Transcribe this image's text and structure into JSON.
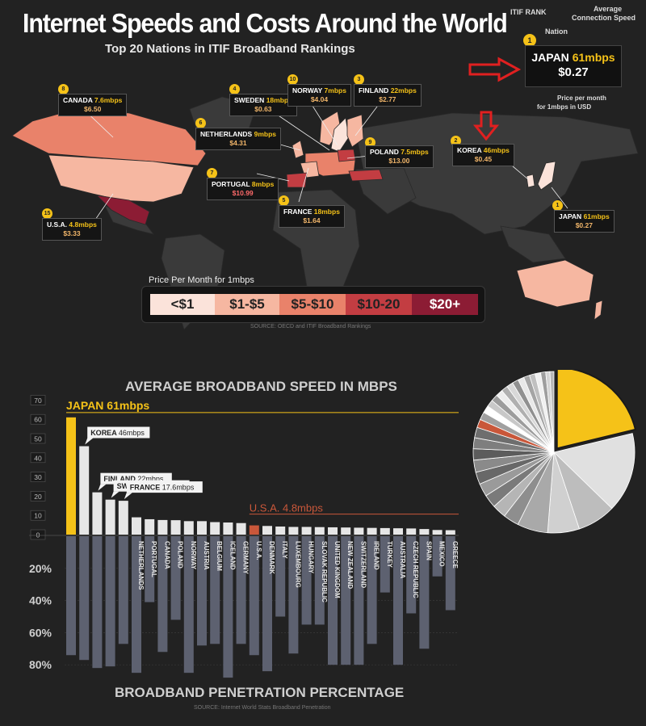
{
  "header": {
    "title": "Internet Speeds and Costs Around the World",
    "subtitle": "Top 20 Nations in ITIF Broadband Rankings"
  },
  "key": {
    "rank_label": "ITIF RANK",
    "nation_label": "Nation",
    "speed_label_1": "Average",
    "speed_label_2": "Connection Speed",
    "rank": "1",
    "nation": "JAPAN",
    "speed": "61mbps",
    "price": "$0.27",
    "price_label_1": "Price per month",
    "price_label_2": "for 1mbps in USD"
  },
  "map_callouts": [
    {
      "rank": "8",
      "nation": "CANADA",
      "speed": "7.6mbps",
      "price": "$6.50"
    },
    {
      "rank": "4",
      "nation": "SWEDEN",
      "speed": "18mbps",
      "price": "$0.63"
    },
    {
      "rank": "10",
      "nation": "NORWAY",
      "speed": "7mbps",
      "price": "$4.04"
    },
    {
      "rank": "3",
      "nation": "FINLAND",
      "speed": "22mbps",
      "price": "$2.77"
    },
    {
      "rank": "6",
      "nation": "NETHERLANDS",
      "speed": "9mbps",
      "price": "$4.31"
    },
    {
      "rank": "9",
      "nation": "POLAND",
      "speed": "7.5mbps",
      "price": "$13.00"
    },
    {
      "rank": "2",
      "nation": "KOREA",
      "speed": "46mbps",
      "price": "$0.45"
    },
    {
      "rank": "7",
      "nation": "PORTUGAL",
      "speed": "8mbps",
      "price": "$10.99"
    },
    {
      "rank": "5",
      "nation": "FRANCE",
      "speed": "18mbps",
      "price": "$1.64"
    },
    {
      "rank": "15",
      "nation": "U.S.A.",
      "speed": "4.8mbps",
      "price": "$3.33"
    },
    {
      "rank": "1",
      "nation": "JAPAN",
      "speed": "61mbps",
      "price": "$0.27"
    }
  ],
  "price_legend": {
    "title": "Price Per Month for 1mbps",
    "ranges": [
      "<$1",
      "$1-$5",
      "$5-$10",
      "$10-20",
      "$20+"
    ],
    "colors": [
      "#fbe3da",
      "#f6b7a1",
      "#e9826a",
      "#c33d42",
      "#8c1c34"
    ]
  },
  "map_source": "SOURCE: OECD and ITIF Broadband Rankings",
  "speed_section_title": "AVERAGE BROADBAND SPEED IN MBPS",
  "penetration_section_title": "BROADBAND PENETRATION PERCENTAGE",
  "penetration_source": "SOURCE: Internet World Stats Broadband Penetration",
  "colors": {
    "background": "#222222",
    "highlight": "#f5c218",
    "usa": "#c9573a",
    "bars": "#e6e6e6",
    "penetration_bars": "#5d6170"
  },
  "chart_data": [
    {
      "type": "bar",
      "title": "AVERAGE BROADBAND SPEED IN MBPS",
      "ylim": [
        0,
        70
      ],
      "yticks": [
        0,
        10,
        20,
        30,
        40,
        50,
        60,
        70
      ],
      "annotations": [
        {
          "label": "JAPAN 61mbps",
          "index": 0
        },
        {
          "label": "KOREA 46mbps",
          "index": 1
        },
        {
          "label": "FINLAND 22mbps",
          "index": 2
        },
        {
          "label": "SWEDEN 18.2mbps",
          "index": 3
        },
        {
          "label": "FRANCE 17.6mbps",
          "index": 4
        },
        {
          "label": "U.S.A. 4.8mbps",
          "index": 14
        }
      ],
      "categories": [
        "JAPAN",
        "KOREA",
        "FINLAND",
        "SWEDEN",
        "FRANCE",
        "NETHERLANDS",
        "PORTUGAL",
        "CANADA",
        "POLAND",
        "NORWAY",
        "AUSTRIA",
        "BELGIUM",
        "ICELAND",
        "GERMANY",
        "U.S.A.",
        "DENMARK",
        "ITALY",
        "LUXEMBOURG",
        "HUNGARY",
        "SLOVAK REPUBLIC",
        "UNITED KINGDOM",
        "NEW ZEALAND",
        "SWITZERLAND",
        "IRELAND",
        "TURKEY",
        "AUSTRALIA",
        "CZECH REPUBLIC",
        "SPAIN",
        "MEXICO",
        "GREECE"
      ],
      "values": [
        61,
        46,
        22,
        18.2,
        17.6,
        9,
        8,
        7.6,
        7.5,
        7,
        7,
        6.5,
        6.3,
        6,
        4.8,
        4.5,
        4.2,
        4,
        4,
        3.9,
        3.8,
        3.7,
        3.6,
        3.5,
        3.4,
        3.3,
        3.2,
        2.9,
        2.4,
        2.3
      ]
    },
    {
      "type": "bar",
      "title": "BROADBAND PENETRATION PERCENTAGE",
      "ylim": [
        0,
        80
      ],
      "yticks": [
        "20%",
        "40%",
        "60%",
        "80%"
      ],
      "categories": [
        "JAPAN",
        "KOREA",
        "FINLAND",
        "SWEDEN",
        "FRANCE",
        "NETHERLANDS",
        "PORTUGAL",
        "CANADA",
        "POLAND",
        "NORWAY",
        "AUSTRIA",
        "BELGIUM",
        "ICELAND",
        "GERMANY",
        "U.S.A.",
        "DENMARK",
        "ITALY",
        "LUXEMBOURG",
        "HUNGARY",
        "SLOVAK REPUBLIC",
        "UNITED KINGDOM",
        "NEW ZEALAND",
        "SWITZERLAND",
        "IRELAND",
        "TURKEY",
        "AUSTRALIA",
        "CZECH REPUBLIC",
        "SPAIN",
        "MEXICO",
        "GREECE"
      ],
      "values": [
        74,
        77,
        82,
        81,
        67,
        85,
        41,
        72,
        52,
        85,
        68,
        67,
        88,
        67,
        74,
        84,
        50,
        73,
        55,
        55,
        80,
        80,
        80,
        67,
        35,
        80,
        48,
        70,
        25,
        46
      ]
    },
    {
      "type": "pie",
      "slices": [
        {
          "name": "JAPAN",
          "value": 61,
          "color": "#f5c218"
        },
        {
          "name": "KOREA",
          "value": 46,
          "color": "#e0e0e0"
        },
        {
          "name": "FINLAND",
          "value": 22,
          "color": "#bdbdbd"
        },
        {
          "name": "SWEDEN",
          "value": 18.2,
          "color": "#d0d0d0"
        },
        {
          "name": "FRANCE",
          "value": 17.6,
          "color": "#a9a9a9"
        },
        {
          "name": "NETHERLANDS",
          "value": 9,
          "color": "#8e8e8e"
        },
        {
          "name": "PORTUGAL",
          "value": 8,
          "color": "#b5b5b5"
        },
        {
          "name": "CANADA",
          "value": 7.6,
          "color": "#7a7a7a"
        },
        {
          "name": "POLAND",
          "value": 7.5,
          "color": "#9a9a9a"
        },
        {
          "name": "NORWAY",
          "value": 7,
          "color": "#686868"
        },
        {
          "name": "AUSTRIA",
          "value": 7,
          "color": "#8a8a8a"
        },
        {
          "name": "BELGIUM",
          "value": 6.5,
          "color": "#5c5c5c"
        },
        {
          "name": "ICELAND",
          "value": 6.3,
          "color": "#7e7e7e"
        },
        {
          "name": "GERMANY",
          "value": 6,
          "color": "#6e6e6e"
        },
        {
          "name": "U.S.A.",
          "value": 4.8,
          "color": "#c9573a"
        },
        {
          "name": "DENMARK",
          "value": 4.5,
          "color": "#a0a0a0"
        },
        {
          "name": "ITALY",
          "value": 4.2,
          "color": "#ffffff"
        },
        {
          "name": "LUXEMBOURG",
          "value": 4,
          "color": "#c8c8c8"
        },
        {
          "name": "HUNGARY",
          "value": 4,
          "color": "#9c9c9c"
        },
        {
          "name": "SLOVAK REPUBLIC",
          "value": 3.9,
          "color": "#ededed"
        },
        {
          "name": "UNITED KINGDOM",
          "value": 3.8,
          "color": "#b0b0b0"
        },
        {
          "name": "NEW ZEALAND",
          "value": 3.7,
          "color": "#d8d8d8"
        },
        {
          "name": "SWITZERLAND",
          "value": 3.6,
          "color": "#909090"
        },
        {
          "name": "IRELAND",
          "value": 3.5,
          "color": "#e8e8e8"
        },
        {
          "name": "TURKEY",
          "value": 3.4,
          "color": "#a5a5a5"
        },
        {
          "name": "AUSTRALIA",
          "value": 3.3,
          "color": "#c0c0c0"
        },
        {
          "name": "CZECH REPUBLIC",
          "value": 3.2,
          "color": "#f0f0f0"
        },
        {
          "name": "SPAIN",
          "value": 2.9,
          "color": "#9e9e9e"
        },
        {
          "name": "MEXICO",
          "value": 2.4,
          "color": "#d4d4d4"
        },
        {
          "name": "GREECE",
          "value": 2.3,
          "color": "#b8b8b8"
        }
      ]
    }
  ]
}
